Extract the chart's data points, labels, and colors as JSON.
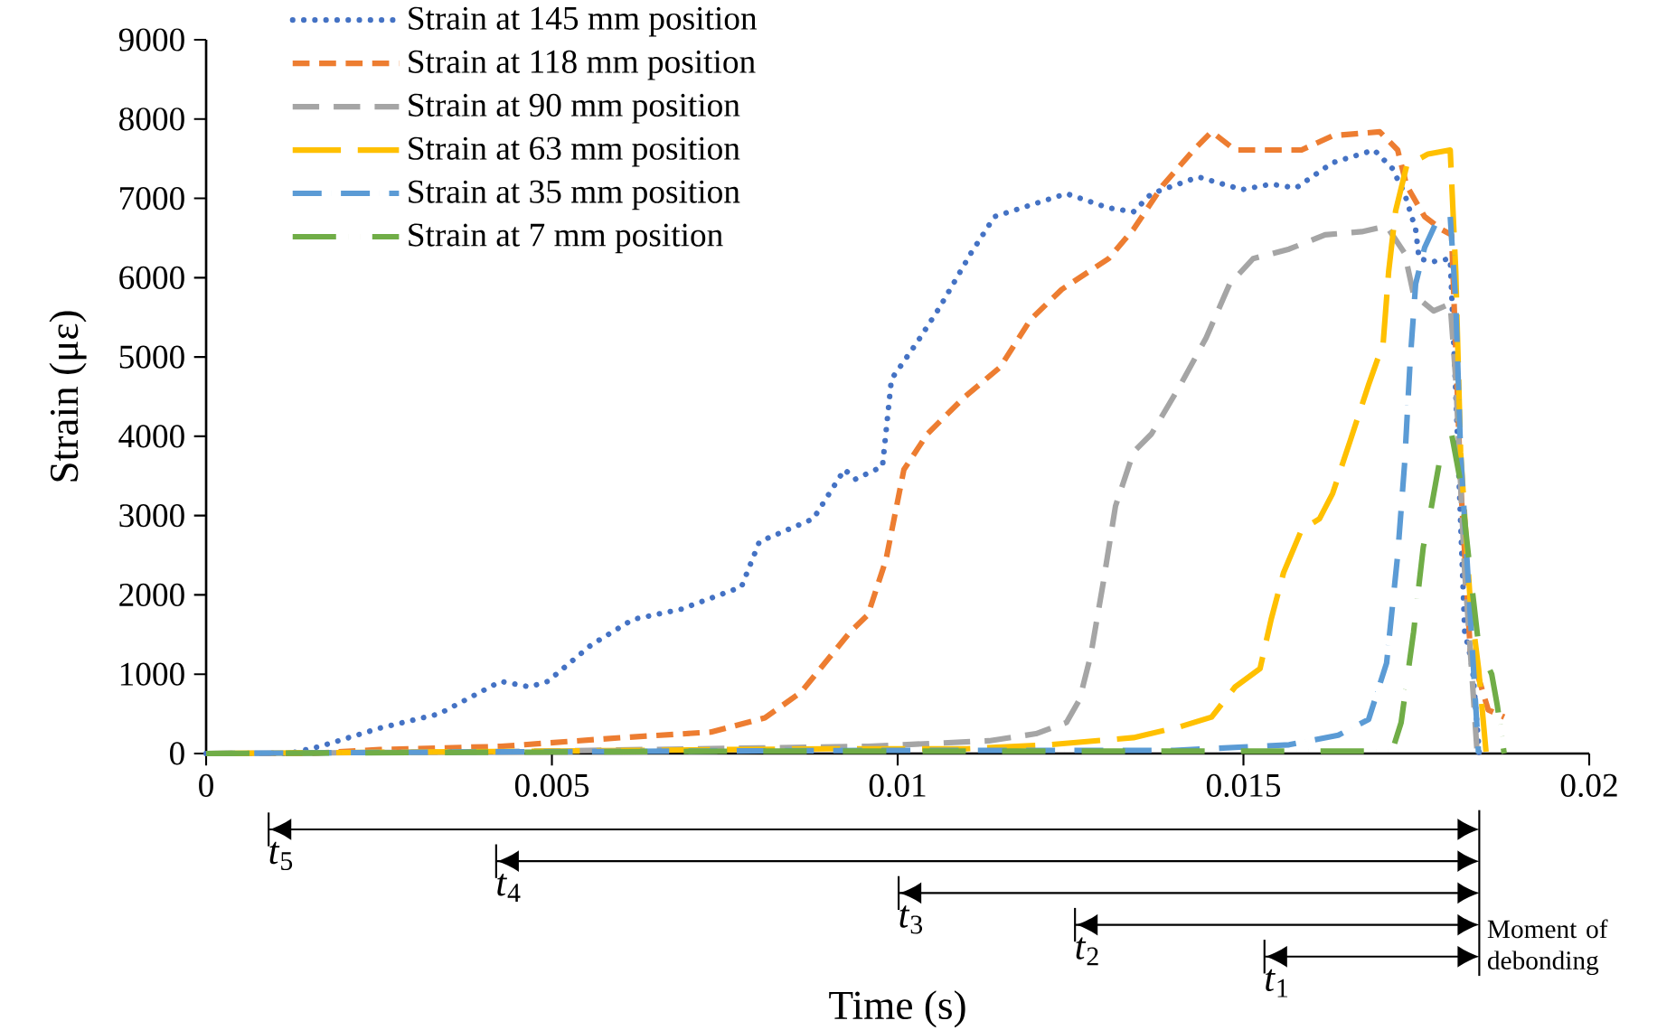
{
  "chart_data": {
    "type": "line",
    "xlabel": "Time (s)",
    "ylabel": "Strain (με)",
    "xlim": [
      0,
      0.02
    ],
    "xticks": [
      0,
      0.005,
      0.01,
      0.015,
      0.02
    ],
    "ylim": [
      0,
      9000
    ],
    "yticks": [
      0,
      1000,
      2000,
      3000,
      4000,
      5000,
      6000,
      7000,
      8000,
      9000
    ],
    "grid": false,
    "legend": "top left",
    "series": [
      {
        "name": "Strain at 145 mm position",
        "color": "#4472c4",
        "line_style": "dotted",
        "x": [
          0,
          0.0012,
          0.00165,
          0.00251,
          0.00337,
          0.00426,
          0.00468,
          0.00494,
          0.00557,
          0.00617,
          0.00687,
          0.00774,
          0.008,
          0.00878,
          0.00923,
          0.00939,
          0.00978,
          0.00991,
          0.01027,
          0.01061,
          0.01106,
          0.0114,
          0.01244,
          0.01305,
          0.01341,
          0.01367,
          0.01435,
          0.01498,
          0.0154,
          0.01576,
          0.01629,
          0.01689,
          0.01715,
          0.01733,
          0.01749,
          0.01754,
          0.01773,
          0.01799,
          0.01807,
          0.0182,
          0.01828,
          0.01832,
          0.01841
        ],
        "values": [
          0,
          0,
          90,
          320,
          500,
          910,
          840,
          910,
          1370,
          1690,
          1820,
          2100,
          2670,
          2960,
          3580,
          3460,
          3620,
          4720,
          5170,
          5630,
          6310,
          6770,
          7060,
          6880,
          6830,
          7060,
          7270,
          7110,
          7180,
          7130,
          7450,
          7610,
          7380,
          7060,
          6610,
          6240,
          6200,
          6240,
          4560,
          1530,
          1230,
          1000,
          0
        ]
      },
      {
        "name": "Strain at 118 mm position",
        "color": "#ed7d31",
        "line_style": "dashed",
        "x": [
          0,
          0.0015,
          0.00251,
          0.00426,
          0.006,
          0.0073,
          0.00808,
          0.0086,
          0.00931,
          0.00957,
          0.00983,
          0.01009,
          0.01043,
          0.01096,
          0.01148,
          0.01192,
          0.01237,
          0.01305,
          0.01341,
          0.01383,
          0.01428,
          0.01454,
          0.01488,
          0.0155,
          0.01584,
          0.01629,
          0.01697,
          0.01723,
          0.01736,
          0.01762,
          0.01786,
          0.01801,
          0.01814,
          0.01828,
          0.01854,
          0.01877
        ],
        "values": [
          0,
          0,
          50,
          90,
          200,
          270,
          450,
          770,
          1530,
          1750,
          2440,
          3580,
          4030,
          4490,
          4870,
          5470,
          5850,
          6240,
          6610,
          7160,
          7610,
          7840,
          7610,
          7610,
          7610,
          7790,
          7840,
          7610,
          7160,
          6770,
          6610,
          6540,
          3420,
          1300,
          550,
          460
        ]
      },
      {
        "name": "Strain at 90 mm position",
        "color": "#a5a5a5",
        "line_style": "dashed",
        "x": [
          0,
          0.004,
          0.008,
          0.00957,
          0.01132,
          0.012,
          0.01244,
          0.01263,
          0.01279,
          0.01297,
          0.01315,
          0.01341,
          0.01367,
          0.01409,
          0.01446,
          0.0148,
          0.01514,
          0.01566,
          0.01618,
          0.01671,
          0.01707,
          0.01733,
          0.01746,
          0.01775,
          0.01799,
          0.01807,
          0.0182,
          0.01828,
          0.01838
        ],
        "values": [
          0,
          20,
          70,
          90,
          160,
          250,
          390,
          680,
          1230,
          2140,
          3120,
          3800,
          4030,
          4650,
          5240,
          5920,
          6240,
          6360,
          6540,
          6580,
          6650,
          6310,
          5790,
          5580,
          5670,
          4720,
          2280,
          1300,
          0
        ]
      },
      {
        "name": "Strain at 63 mm position",
        "color": "#ffc000",
        "line_style": "dashed",
        "x": [
          0,
          0.005,
          0.009,
          0.011,
          0.01218,
          0.01341,
          0.01409,
          0.01454,
          0.01488,
          0.01524,
          0.0154,
          0.01558,
          0.01584,
          0.0161,
          0.01629,
          0.01655,
          0.01681,
          0.01702,
          0.0171,
          0.0172,
          0.01736,
          0.01767,
          0.01799,
          0.01807,
          0.01814,
          0.01828,
          0.0184,
          0.01851
        ],
        "values": [
          0,
          30,
          60,
          60,
          110,
          200,
          340,
          460,
          840,
          1070,
          1690,
          2280,
          2820,
          2960,
          3280,
          3960,
          4650,
          5170,
          6080,
          6840,
          7410,
          7560,
          7610,
          6080,
          3800,
          1910,
          1070,
          0
        ]
      },
      {
        "name": "Strain at 35 mm position",
        "color": "#5b9bd5",
        "line_style": "dashed",
        "x": [
          0,
          0.004,
          0.01,
          0.014,
          0.01566,
          0.01637,
          0.01681,
          0.01707,
          0.01723,
          0.01733,
          0.01741,
          0.01749,
          0.01762,
          0.0178,
          0.01799,
          0.01807,
          0.01814,
          0.01828,
          0.0184
        ],
        "values": [
          0,
          20,
          40,
          40,
          110,
          230,
          430,
          1140,
          2500,
          3650,
          4940,
          5920,
          6380,
          6720,
          6770,
          5700,
          3800,
          1750,
          0
        ]
      },
      {
        "name": "Strain at 7 mm position",
        "color": "#70ad47",
        "line_style": "dashed",
        "x": [
          0,
          0.008,
          0.016,
          0.01715,
          0.01728,
          0.01746,
          0.0176,
          0.01772,
          0.01786,
          0.01801,
          0.01814,
          0.01828,
          0.0184,
          0.01859,
          0.01867,
          0.01877
        ],
        "values": [
          0,
          30,
          30,
          30,
          390,
          1530,
          2600,
          3120,
          3800,
          4030,
          3420,
          2280,
          1370,
          1000,
          610,
          0
        ]
      }
    ],
    "ref_lines": [
      {
        "axis": "x",
        "value": 0.00089,
        "label": "*t*$_{5}$"
      },
      {
        "axis": "x",
        "value": 0.00418,
        "label": "*t*$_{4}$"
      },
      {
        "axis": "x",
        "value": 0.01,
        "label": "*t*$_{3}$"
      },
      {
        "axis": "x",
        "value": 0.01255,
        "label": "*t*$_{2}$"
      },
      {
        "axis": "x",
        "value": 0.01529,
        "label": "*t*$_{1}$"
      },
      {
        "axis": "x",
        "value": 0.01841,
        "label": "Moment of debonding"
      }
    ]
  }
}
